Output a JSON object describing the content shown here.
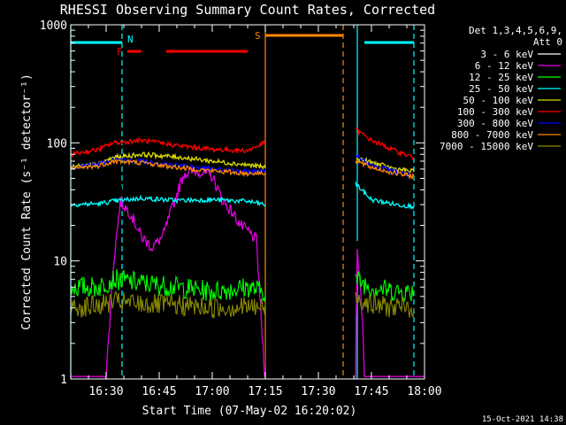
{
  "chart_data": {
    "type": "line",
    "title": "RHESSI Observing Summary Count Rates, Corrected",
    "xlabel": "Start Time (07-May-02 16:20:02)",
    "ylabel": "Corrected Count Rate (s⁻¹ detector⁻¹)",
    "y_scale": "log",
    "ylim": [
      1,
      1000
    ],
    "xlim_minutes_after_16_20": [
      0,
      100
    ],
    "x_ticks": [
      {
        "label": "16:30",
        "min": 10
      },
      {
        "label": "16:45",
        "min": 25
      },
      {
        "label": "17:00",
        "min": 40
      },
      {
        "label": "17:15",
        "min": 55
      },
      {
        "label": "17:30",
        "min": 70
      },
      {
        "label": "17:45",
        "min": 85
      },
      {
        "label": "18:00",
        "min": 100
      }
    ],
    "y_ticks": [
      {
        "label": "1",
        "value": 1
      },
      {
        "label": "10",
        "value": 10
      },
      {
        "label": "100",
        "value": 100
      },
      {
        "label": "1000",
        "value": 1000
      }
    ],
    "legend_header": [
      "Det 1,3,4,5,6,9,",
      "Att 0"
    ],
    "legend_placement": "right",
    "series": [
      {
        "name": "3 - 6 keV",
        "color": "#000000",
        "points": [
          [
            0,
            1.05
          ],
          [
            12,
            1.05
          ],
          [
            14,
            40
          ],
          [
            20,
            24
          ],
          [
            23,
            20
          ],
          [
            26,
            28
          ],
          [
            29,
            50
          ],
          [
            32,
            80
          ],
          [
            36,
            85
          ],
          [
            40,
            92
          ],
          [
            43,
            60
          ],
          [
            46,
            50
          ],
          [
            48,
            42
          ],
          [
            50,
            34
          ],
          [
            53,
            28
          ],
          [
            54.5,
            10
          ],
          [
            54.8,
            1.05
          ],
          [
            80.5,
            1.05
          ],
          [
            81,
            15
          ],
          [
            82.5,
            3
          ],
          [
            83,
            1.05
          ],
          [
            100,
            1.05
          ]
        ]
      },
      {
        "name": "6 - 12 keV",
        "color": "#dd00dd",
        "points": [
          [
            0,
            1.05
          ],
          [
            10,
            1.05
          ],
          [
            12,
            9
          ],
          [
            14,
            32
          ],
          [
            17,
            25
          ],
          [
            20,
            16
          ],
          [
            23,
            13
          ],
          [
            26,
            16
          ],
          [
            29,
            30
          ],
          [
            32,
            55
          ],
          [
            36,
            58
          ],
          [
            40,
            52
          ],
          [
            43,
            32
          ],
          [
            46,
            25
          ],
          [
            48,
            20
          ],
          [
            50,
            18
          ],
          [
            52.5,
            15
          ],
          [
            54.8,
            1.05
          ],
          [
            80.5,
            1.05
          ],
          [
            81,
            14
          ],
          [
            82.5,
            3
          ],
          [
            83,
            1.05
          ],
          [
            100,
            1.05
          ]
        ]
      },
      {
        "name": "12 - 25 keV",
        "color": "#00ff00",
        "points": [
          [
            0,
            6
          ],
          [
            8,
            6
          ],
          [
            12,
            7
          ],
          [
            20,
            6.5
          ],
          [
            30,
            6
          ],
          [
            40,
            5.5
          ],
          [
            50,
            6
          ],
          [
            54.8,
            5.5
          ],
          [
            80.5,
            7
          ],
          [
            85,
            6
          ],
          [
            92,
            5.5
          ],
          [
            97,
            5.5
          ]
        ]
      },
      {
        "name": "25 - 50 keV",
        "color": "#00ffff",
        "points": [
          [
            0,
            30
          ],
          [
            8,
            30.5
          ],
          [
            12,
            32
          ],
          [
            20,
            34
          ],
          [
            30,
            32.5
          ],
          [
            40,
            33
          ],
          [
            50,
            32
          ],
          [
            54.8,
            30
          ],
          [
            80.5,
            45
          ],
          [
            85,
            33
          ],
          [
            92,
            30
          ],
          [
            97,
            29
          ]
        ]
      },
      {
        "name": "50 - 100 keV",
        "color": "#dddd00",
        "points": [
          [
            0,
            62
          ],
          [
            8,
            66
          ],
          [
            12,
            75
          ],
          [
            20,
            80
          ],
          [
            30,
            76
          ],
          [
            40,
            70
          ],
          [
            50,
            65
          ],
          [
            54.8,
            62
          ],
          [
            80.5,
            75
          ],
          [
            85,
            68
          ],
          [
            92,
            60
          ],
          [
            97,
            57
          ]
        ]
      },
      {
        "name": "100 - 300 keV",
        "color": "#ff0000",
        "points": [
          [
            0,
            80
          ],
          [
            8,
            88
          ],
          [
            12,
            100
          ],
          [
            20,
            105
          ],
          [
            30,
            95
          ],
          [
            40,
            88
          ],
          [
            50,
            86
          ],
          [
            54.8,
            100
          ],
          [
            80.5,
            130
          ],
          [
            85,
            105
          ],
          [
            92,
            85
          ],
          [
            97,
            75
          ]
        ]
      },
      {
        "name": "300 - 800 keV",
        "color": "#0000ff",
        "points": [
          [
            0,
            62
          ],
          [
            8,
            66
          ],
          [
            12,
            72
          ],
          [
            20,
            70
          ],
          [
            30,
            65
          ],
          [
            40,
            60
          ],
          [
            50,
            57
          ],
          [
            54.8,
            58
          ],
          [
            80.5,
            80
          ],
          [
            85,
            65
          ],
          [
            92,
            57
          ],
          [
            97,
            52
          ]
        ]
      },
      {
        "name": "800 - 7000 keV",
        "color": "#ff8800",
        "points": [
          [
            0,
            60
          ],
          [
            8,
            64
          ],
          [
            12,
            70
          ],
          [
            20,
            68
          ],
          [
            30,
            62
          ],
          [
            40,
            58
          ],
          [
            50,
            55
          ],
          [
            54.8,
            56
          ],
          [
            80.5,
            70
          ],
          [
            85,
            62
          ],
          [
            92,
            55
          ],
          [
            97,
            52
          ]
        ]
      },
      {
        "name": "7000 - 15000 keV",
        "color": "#888800",
        "points": [
          [
            0,
            4
          ],
          [
            8,
            4.2
          ],
          [
            12,
            4.5
          ],
          [
            20,
            4.3
          ],
          [
            30,
            4.2
          ],
          [
            40,
            4
          ],
          [
            50,
            4.1
          ],
          [
            54.8,
            4
          ],
          [
            80.5,
            5
          ],
          [
            85,
            4.3
          ],
          [
            92,
            4
          ],
          [
            97,
            4
          ]
        ]
      }
    ],
    "flag_bars": [
      {
        "label": "N",
        "color": "#00ffff",
        "segments": [
          [
            0,
            14.5
          ],
          [
            83,
            97
          ]
        ]
      },
      {
        "label": "F",
        "color": "#ff0000",
        "segments": [
          [
            16,
            20
          ],
          [
            27,
            50
          ]
        ]
      },
      {
        "label": "S",
        "color": "#ff8800",
        "segments": [
          [
            55,
            77
          ]
        ]
      }
    ],
    "vertical_markers": [
      {
        "at": 0,
        "color": "#00ffff",
        "style": "solid"
      },
      {
        "at": 14.5,
        "color": "#00ffff",
        "style": "dashed"
      },
      {
        "at": 55,
        "color": "#ff8800",
        "style": "solid"
      },
      {
        "at": 77,
        "color": "#ff8800",
        "style": "dashed"
      },
      {
        "at": 81,
        "color": "#00ffff",
        "style": "solid"
      },
      {
        "at": 97,
        "color": "#00ffff",
        "style": "dashed"
      }
    ],
    "footer_timestamp": "15-Oct-2021 14:38"
  }
}
